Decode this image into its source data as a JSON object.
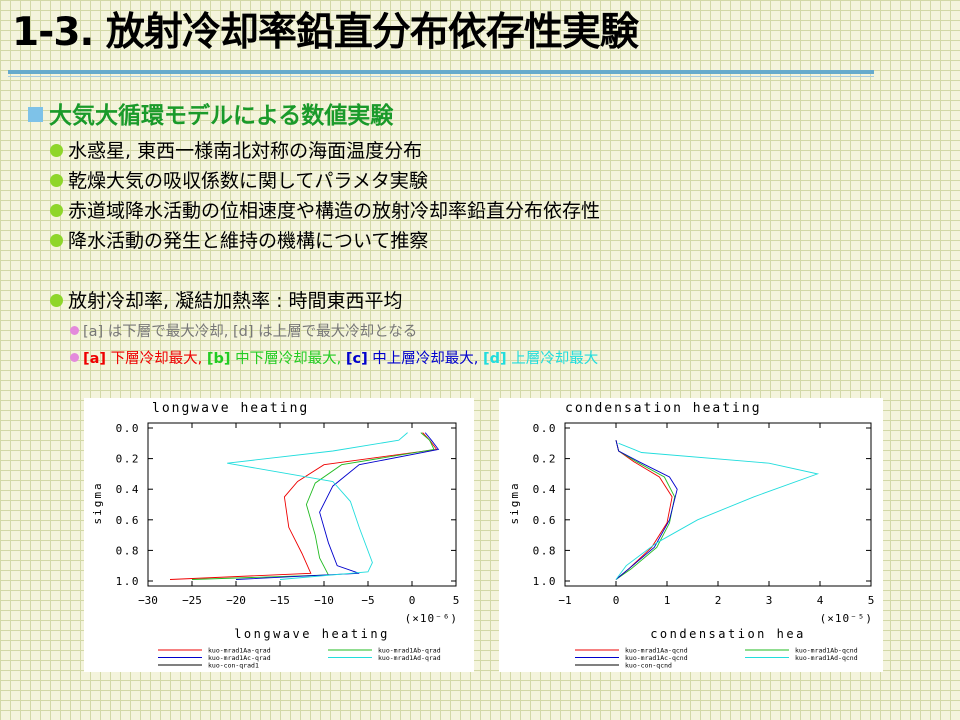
{
  "slide": {
    "title": "1-3. 放射冷却率鉛直分布依存性実験",
    "section": "大気大循環モデルによる数値実験",
    "bullets": [
      "水惑星, 東西一様南北対称の海面温度分布",
      "乾燥大気の吸収係数に関してパラメタ実験",
      "赤道域降水活動の位相速度や構造の放射冷却率鉛直分布依存性",
      "降水活動の発生と維持の機構について推察"
    ],
    "bullet5": "放射冷却率, 凝結加熱率 : 時間東西平均",
    "sub1": "[a] は下層で最大冷却, [d] は上層で最大冷却となる",
    "sub2": [
      {
        "text": "[a]",
        "tail": " 下層冷却最大,",
        "color": "#ee0000"
      },
      {
        "text": "[b]",
        "tail": " 中下層冷却最大,",
        "color": "#22cc22"
      },
      {
        "text": "[c]",
        "tail": " 中上層冷却最大,",
        "color": "#0000cc"
      },
      {
        "text": "[d]",
        "tail": " 上層冷却最大",
        "color": "#22dddd"
      }
    ],
    "colors": {
      "section": "#1a9a2a",
      "rule": "#66aacc",
      "sub1": "#777777",
      "legend_black": "#000000"
    }
  },
  "chart_data": [
    {
      "type": "line",
      "title": "longwave heating",
      "xlabel": "longwave heating",
      "ylabel": "sigma",
      "scale_note": "(×10⁻⁶)",
      "xlim": [
        -30,
        5
      ],
      "ylim": [
        1.0,
        0.0
      ],
      "xticks": [
        -30,
        -25,
        -20,
        -15,
        -10,
        -5,
        0,
        5
      ],
      "xtick_labels": [
        "−30",
        "−25",
        "−20",
        "−15",
        "−10",
        "−5",
        "0",
        "5"
      ],
      "yticks": [
        0.0,
        0.2,
        0.4,
        0.6,
        0.8,
        1.0
      ],
      "ytick_labels": [
        "0.0",
        "0.2",
        "0.4",
        "0.6",
        "0.8",
        "1.0"
      ],
      "series": [
        {
          "name": "kuo-mrad1Aa-qrad",
          "color": "#ee0000",
          "x": [
            1.2,
            2.0,
            2.8,
            -10,
            -13,
            -14.5,
            -14,
            -12.5,
            -11.5,
            -27.5
          ],
          "y": [
            0.03,
            0.08,
            0.14,
            0.24,
            0.35,
            0.45,
            0.65,
            0.82,
            0.95,
            0.99
          ]
        },
        {
          "name": "kuo-mrad1Ab-qrad",
          "color": "#22bb22",
          "x": [
            1.0,
            2.0,
            2.5,
            -8,
            -11,
            -12,
            -11,
            -10.5,
            -9.5,
            -25
          ],
          "y": [
            0.03,
            0.08,
            0.14,
            0.24,
            0.36,
            0.5,
            0.7,
            0.85,
            0.96,
            0.99
          ]
        },
        {
          "name": "kuo-mrad1Ac-qrad",
          "color": "#0000cc",
          "x": [
            1.5,
            2.2,
            3.0,
            -6,
            -9,
            -10.5,
            -9.5,
            -8.5,
            -6,
            -20
          ],
          "y": [
            0.03,
            0.08,
            0.14,
            0.24,
            0.38,
            0.55,
            0.75,
            0.9,
            0.95,
            0.99
          ]
        },
        {
          "name": "kuo-mrad1Ad-qrad",
          "color": "#22dddd",
          "x": [
            -0.5,
            -1.5,
            -9,
            -21,
            -9,
            -7,
            -6,
            -4.5,
            -5,
            -15
          ],
          "y": [
            0.03,
            0.08,
            0.15,
            0.23,
            0.35,
            0.48,
            0.65,
            0.88,
            0.94,
            0.99
          ]
        },
        {
          "name": "kuo-con-qrad1",
          "color": "#000000",
          "x": [],
          "y": []
        }
      ]
    },
    {
      "type": "line",
      "title": "condensation heating",
      "xlabel": "condensation hea",
      "ylabel": "sigma",
      "scale_note": "(×10⁻⁵)",
      "xlim": [
        -1,
        5
      ],
      "ylim": [
        1.0,
        0.0
      ],
      "xticks": [
        -1,
        0,
        1,
        2,
        3,
        4,
        5
      ],
      "xtick_labels": [
        "−1",
        "0",
        "1",
        "2",
        "3",
        "4",
        "5"
      ],
      "yticks": [
        0.0,
        0.2,
        0.4,
        0.6,
        0.8,
        1.0
      ],
      "ytick_labels": [
        "0.0",
        "0.2",
        "0.4",
        "0.6",
        "0.8",
        "1.0"
      ],
      "series": [
        {
          "name": "kuo-mrad1Aa-qcnd",
          "color": "#ee0000",
          "x": [
            0,
            0.05,
            0.35,
            0.85,
            1.1,
            1.0,
            0.7,
            0.25,
            0
          ],
          "y": [
            0.08,
            0.15,
            0.22,
            0.32,
            0.45,
            0.62,
            0.78,
            0.92,
            0.99
          ]
        },
        {
          "name": "kuo-mrad1Ab-qcnd",
          "color": "#22bb22",
          "x": [
            0,
            0.05,
            0.4,
            0.95,
            1.15,
            1.05,
            0.8,
            0.3,
            0
          ],
          "y": [
            0.08,
            0.15,
            0.22,
            0.32,
            0.45,
            0.62,
            0.78,
            0.92,
            0.99
          ]
        },
        {
          "name": "kuo-mrad1Ac-qcnd",
          "color": "#0000cc",
          "x": [
            0,
            0.05,
            0.45,
            1.05,
            1.2,
            1.05,
            0.75,
            0.25,
            0
          ],
          "y": [
            0.08,
            0.15,
            0.22,
            0.32,
            0.4,
            0.6,
            0.78,
            0.92,
            0.99
          ]
        },
        {
          "name": "kuo-mrad1Ad-qcnd",
          "color": "#22dddd",
          "x": [
            0.05,
            0.5,
            3.0,
            3.95,
            2.7,
            1.6,
            0.8,
            0.2,
            0
          ],
          "y": [
            0.1,
            0.16,
            0.23,
            0.3,
            0.45,
            0.6,
            0.75,
            0.9,
            0.99
          ]
        },
        {
          "name": "kuo-con-qcnd",
          "color": "#000000",
          "x": [],
          "y": []
        }
      ]
    }
  ]
}
